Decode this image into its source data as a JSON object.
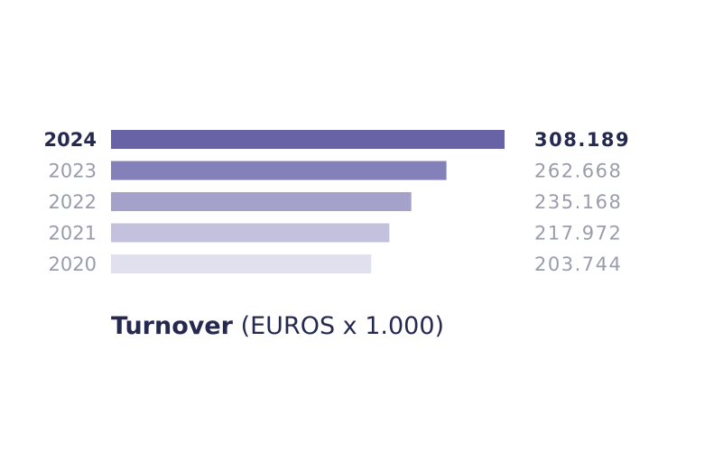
{
  "chart_data": {
    "type": "bar",
    "orientation": "horizontal",
    "categories": [
      "2024",
      "2023",
      "2022",
      "2021",
      "2020"
    ],
    "value_labels": [
      "308.189",
      "262.668",
      "235.168",
      "217.972",
      "203.744"
    ],
    "values": [
      308189,
      262668,
      235168,
      217972,
      203744
    ],
    "highlight": "2024",
    "title_bold": "Turnover",
    "title_rest": " (EUROS x 1.000)",
    "colors": [
      "#6862a6",
      "#8480b9",
      "#a4a1cb",
      "#c3c1de",
      "#e1e0ee"
    ]
  }
}
